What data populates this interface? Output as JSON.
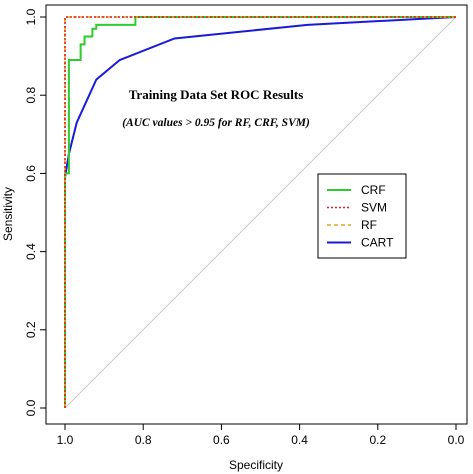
{
  "chart_data": {
    "type": "line",
    "xlabel": "Specificity",
    "ylabel": "Sensitivity",
    "xlim": [
      1.0,
      0.0
    ],
    "ylim": [
      0.0,
      1.0
    ],
    "x_reversed": true,
    "x_ticks": [
      "1.0",
      "0.8",
      "0.6",
      "0.4",
      "0.2",
      "0.0"
    ],
    "y_ticks": [
      "0.0",
      "0.2",
      "0.4",
      "0.6",
      "0.8",
      "1.0"
    ],
    "grid": false,
    "legend_position": "right",
    "annotations": [
      {
        "text": "Training Data Set ROC Results",
        "style": "bold"
      },
      {
        "text": "(AUC values > 0.95 for RF, CRF, SVM)",
        "style": "bold-italic"
      }
    ],
    "reference_line": {
      "from": [
        1.0,
        0.0
      ],
      "to": [
        0.0,
        1.0
      ],
      "color": "#c8c8c8"
    },
    "series": [
      {
        "name": "CRF",
        "color": "#2ecc2e",
        "dash": "solid",
        "points": [
          [
            1.0,
            0.0
          ],
          [
            1.0,
            0.6
          ],
          [
            0.99,
            0.6
          ],
          [
            0.99,
            0.89
          ],
          [
            0.96,
            0.89
          ],
          [
            0.96,
            0.93
          ],
          [
            0.95,
            0.93
          ],
          [
            0.95,
            0.95
          ],
          [
            0.93,
            0.95
          ],
          [
            0.93,
            0.97
          ],
          [
            0.92,
            0.97
          ],
          [
            0.92,
            0.98
          ],
          [
            0.82,
            0.98
          ],
          [
            0.82,
            1.0
          ],
          [
            0.0,
            1.0
          ]
        ]
      },
      {
        "name": "SVM",
        "color": "#dd2222",
        "dash": "dotted",
        "points": [
          [
            1.0,
            0.0
          ],
          [
            1.0,
            1.0
          ],
          [
            0.0,
            1.0
          ]
        ]
      },
      {
        "name": "RF",
        "color": "#e8a020",
        "dash": "dashed",
        "points": [
          [
            1.0,
            0.0
          ],
          [
            1.0,
            1.0
          ],
          [
            0.0,
            1.0
          ]
        ]
      },
      {
        "name": "CART",
        "color": "#1a1adc",
        "dash": "solid",
        "points": [
          [
            1.0,
            0.0
          ],
          [
            1.0,
            0.59
          ],
          [
            0.99,
            0.65
          ],
          [
            0.97,
            0.73
          ],
          [
            0.92,
            0.84
          ],
          [
            0.86,
            0.89
          ],
          [
            0.72,
            0.945
          ],
          [
            0.38,
            0.98
          ],
          [
            0.0,
            1.0
          ]
        ]
      }
    ]
  }
}
